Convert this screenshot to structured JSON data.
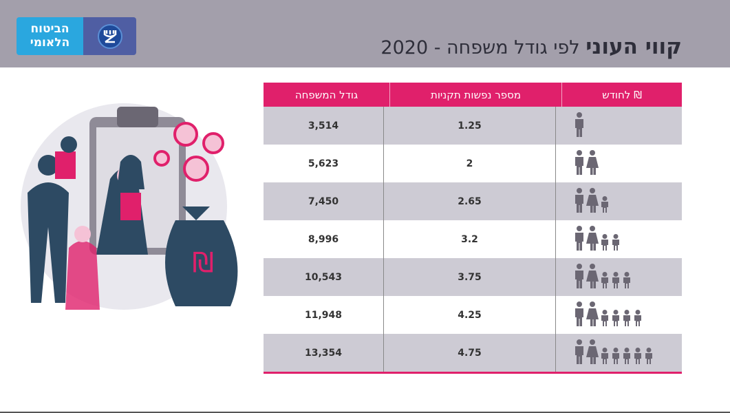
{
  "logo": {
    "line1": "הביטוח",
    "line2": "הלאומי"
  },
  "title": {
    "bold": "קווי העוני",
    "rest": " לפי גודל משפחה - 2020"
  },
  "table": {
    "headers": {
      "family_size": "גודל המשפחה",
      "standard_persons": "מספר נפשות תקניות",
      "monthly": "₪ לחודש"
    },
    "rows": [
      {
        "adults": 1,
        "children": 0,
        "standard": "1.25",
        "monthly": "3,514"
      },
      {
        "adults": 2,
        "children": 0,
        "standard": "2",
        "monthly": "5,623"
      },
      {
        "adults": 2,
        "children": 1,
        "standard": "2.65",
        "monthly": "7,450"
      },
      {
        "adults": 2,
        "children": 2,
        "standard": "3.2",
        "monthly": "8,996"
      },
      {
        "adults": 2,
        "children": 3,
        "standard": "3.75",
        "monthly": "10,543"
      },
      {
        "adults": 2,
        "children": 4,
        "standard": "4.25",
        "monthly": "11,948"
      },
      {
        "adults": 2,
        "children": 5,
        "standard": "4.75",
        "monthly": "13,354"
      }
    ]
  },
  "colors": {
    "accent": "#e0206b",
    "header_bg": "#a39fab",
    "row_gray": "#cdcbd4",
    "icon": "#6b6773"
  }
}
